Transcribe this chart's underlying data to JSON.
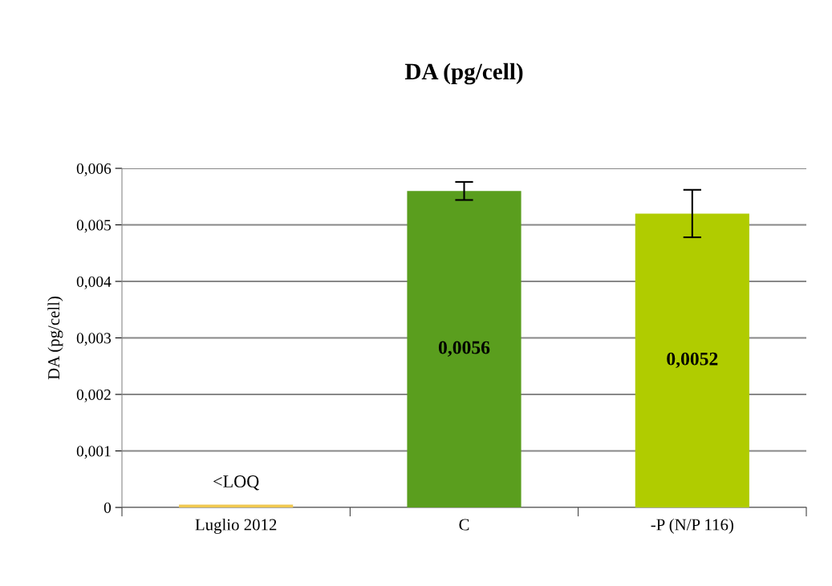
{
  "chart_data": {
    "type": "bar",
    "title": "DA (pg/cell)",
    "ylabel": "DA (pg/cell)",
    "categories": [
      "Luglio 2012",
      "C",
      "-P (N/P 116)"
    ],
    "values": [
      5e-05,
      0.0056,
      0.0052
    ],
    "colors": [
      "#f0c850",
      "#5a9e1e",
      "#b0cc00"
    ],
    "errors": [
      null,
      0.00016,
      0.00042
    ],
    "value_labels": [
      "<LOQ",
      "0,0056",
      "0,0052"
    ],
    "ylim": [
      0,
      0.006
    ],
    "yticks": [
      {
        "value": 0,
        "label": "0"
      },
      {
        "value": 0.001,
        "label": "0,001"
      },
      {
        "value": 0.002,
        "label": "0,002"
      },
      {
        "value": 0.003,
        "label": "0,003"
      },
      {
        "value": 0.004,
        "label": "0,004"
      },
      {
        "value": 0.005,
        "label": "0,005"
      },
      {
        "value": 0.006,
        "label": "0,006"
      }
    ],
    "grid": "y",
    "legend": false
  }
}
